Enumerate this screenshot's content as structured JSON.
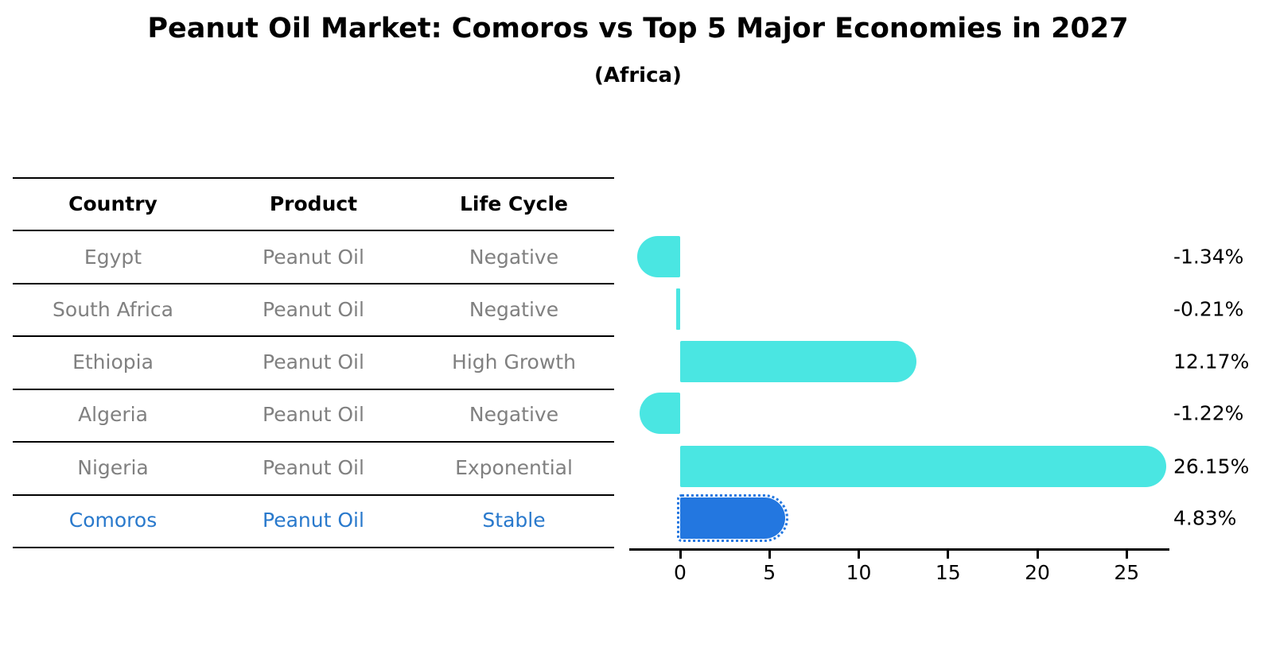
{
  "title": "Peanut Oil Market: Comoros vs Top 5 Major Economies in 2027",
  "subtitle": "(Africa)",
  "table": {
    "headers": [
      "Country",
      "Product",
      "Life Cycle"
    ],
    "rows": [
      {
        "country": "Egypt",
        "product": "Peanut Oil",
        "life_cycle": "Negative"
      },
      {
        "country": "South Africa",
        "product": "Peanut Oil",
        "life_cycle": "Negative"
      },
      {
        "country": "Ethiopia",
        "product": "Peanut Oil",
        "life_cycle": "High Growth"
      },
      {
        "country": "Algeria",
        "product": "Peanut Oil",
        "life_cycle": "Negative"
      },
      {
        "country": "Nigeria",
        "product": "Peanut Oil",
        "life_cycle": "Exponential"
      },
      {
        "country": "Comoros",
        "product": "Peanut Oil",
        "life_cycle": "Stable"
      }
    ]
  },
  "chart_data": {
    "type": "bar",
    "orientation": "horizontal",
    "title": "Peanut Oil Market: Comoros vs Top 5 Major Economies in 2027",
    "subtitle": "(Africa)",
    "categories": [
      "Egypt",
      "South Africa",
      "Ethiopia",
      "Algeria",
      "Nigeria",
      "Comoros"
    ],
    "values": [
      -1.34,
      -0.21,
      12.17,
      -1.22,
      26.15,
      4.83
    ],
    "value_labels": [
      "-1.34%",
      "-0.21%",
      "12.17%",
      "-1.22%",
      "26.15%",
      "4.83%"
    ],
    "xticks": [
      0,
      5,
      10,
      15,
      20,
      25
    ],
    "xlim": [
      -2.85,
      27.4
    ],
    "grid": false,
    "legend": "none",
    "bar_color": "#4AE6E2",
    "highlight_index": 5,
    "highlight_color": "#2377E0",
    "highlight_border_style": "dotted",
    "muted_text_color": "#808080",
    "highlight_text_color": "#2979CC"
  }
}
